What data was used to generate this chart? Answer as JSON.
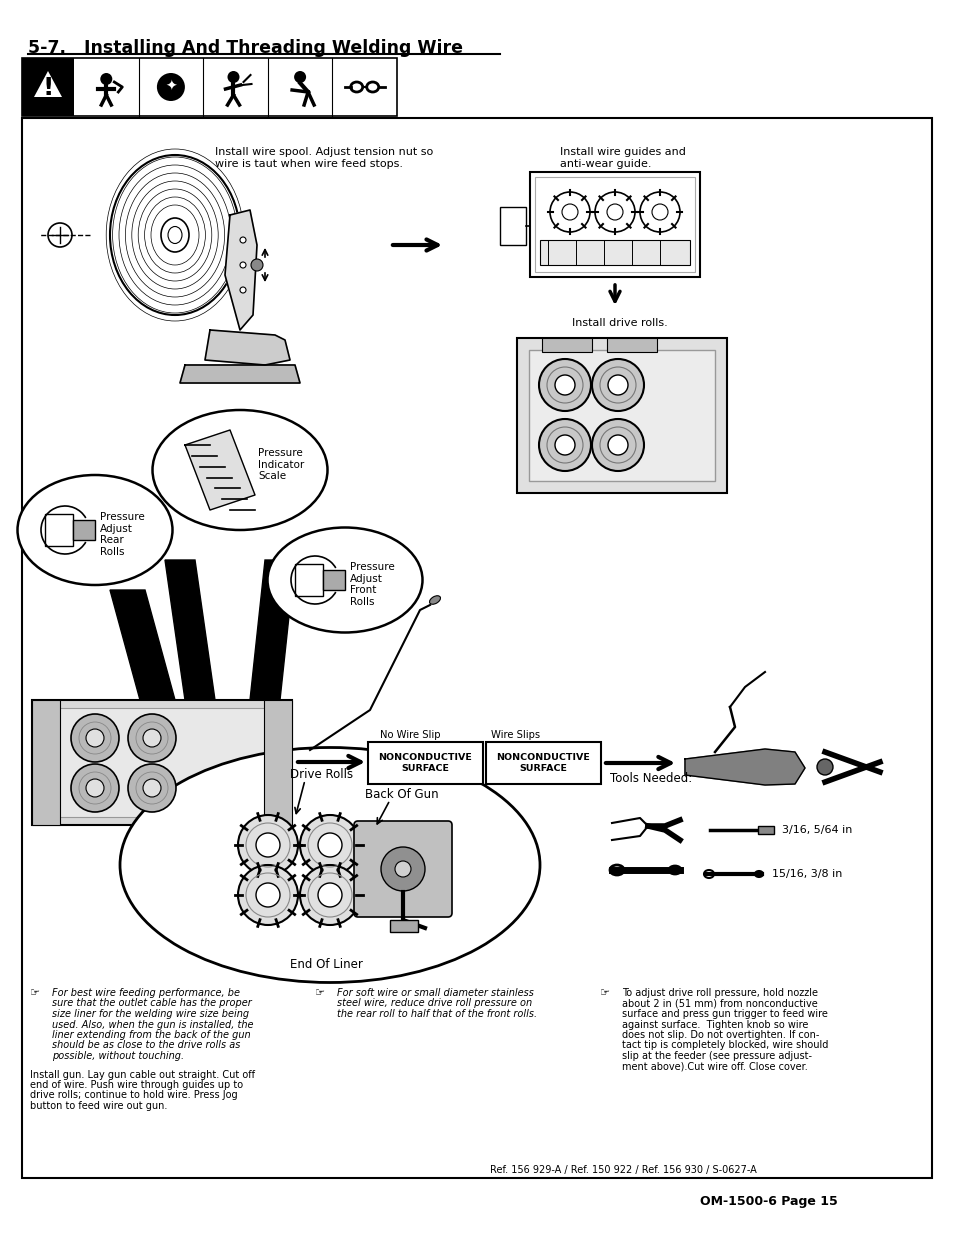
{
  "title": "5-7.   Installing And Threading Welding Wire",
  "page_footer": "OM-1500-6 Page 15",
  "ref_text": "Ref. 156 929-A / Ref. 150 922 / Ref. 156 930 / S-0627-A",
  "background_color": "#ffffff",
  "note1_italic_lines": [
    "For best wire feeding performance, be",
    "sure that the outlet cable has the proper",
    "size liner for the welding wire size being",
    "used. Also, when the gun is installed, the",
    "liner extending from the back of the gun",
    "should be as close to the drive rolls as",
    "possible, without touching."
  ],
  "note1_normal_lines": [
    "Install gun. Lay gun cable out straight. Cut off",
    "end of wire. Push wire through guides up to",
    "drive rolls; continue to hold wire. Press Jog",
    "button to feed wire out gun."
  ],
  "note2_italic_lines": [
    "For soft wire or small diameter stainless",
    "steel wire, reduce drive roll pressure on",
    "the rear roll to half that of the front rolls."
  ],
  "note3_lines": [
    "To adjust drive roll pressure, hold nozzle",
    "about 2 in (51 mm) from nonconductive",
    "surface and press gun trigger to feed wire",
    "against surface.  Tighten knob so wire",
    "does not slip. Do not overtighten. If con-",
    "tact tip is completely blocked, wire should",
    "slip at the feeder (see pressure adjust-",
    "ment above).Cut wire off. Close cover."
  ],
  "label_install_spool": "Install wire spool. Adjust tension nut so\nwire is taut when wire feed stops.",
  "label_install_guides": "Install wire guides and\nanti-wear guide.",
  "label_install_drive": "Install drive rolls.",
  "label_pressure_adjust_rear": "Pressure\nAdjust\nRear\nRolls",
  "label_pressure_indicator": "Pressure\nIndicator\nScale",
  "label_pressure_adjust_front": "Pressure\nAdjust\nFront\nRolls",
  "label_no_wire_slip": "No Wire Slip",
  "label_wire_slips": "Wire Slips",
  "label_nonconductive1": "NONCONDUCTIVE\nSURFACE",
  "label_nonconductive2": "NONCONDUCTIVE\nSURFACE",
  "label_drive_rolls": "Drive Rolls",
  "label_back_of_gun": "Back Of Gun",
  "label_end_of_liner": "End Of Liner",
  "label_tools_needed": "Tools Needed:",
  "label_tools_1": "3/16, 5/64 in",
  "label_tools_2": "15/16, 3/8 in"
}
